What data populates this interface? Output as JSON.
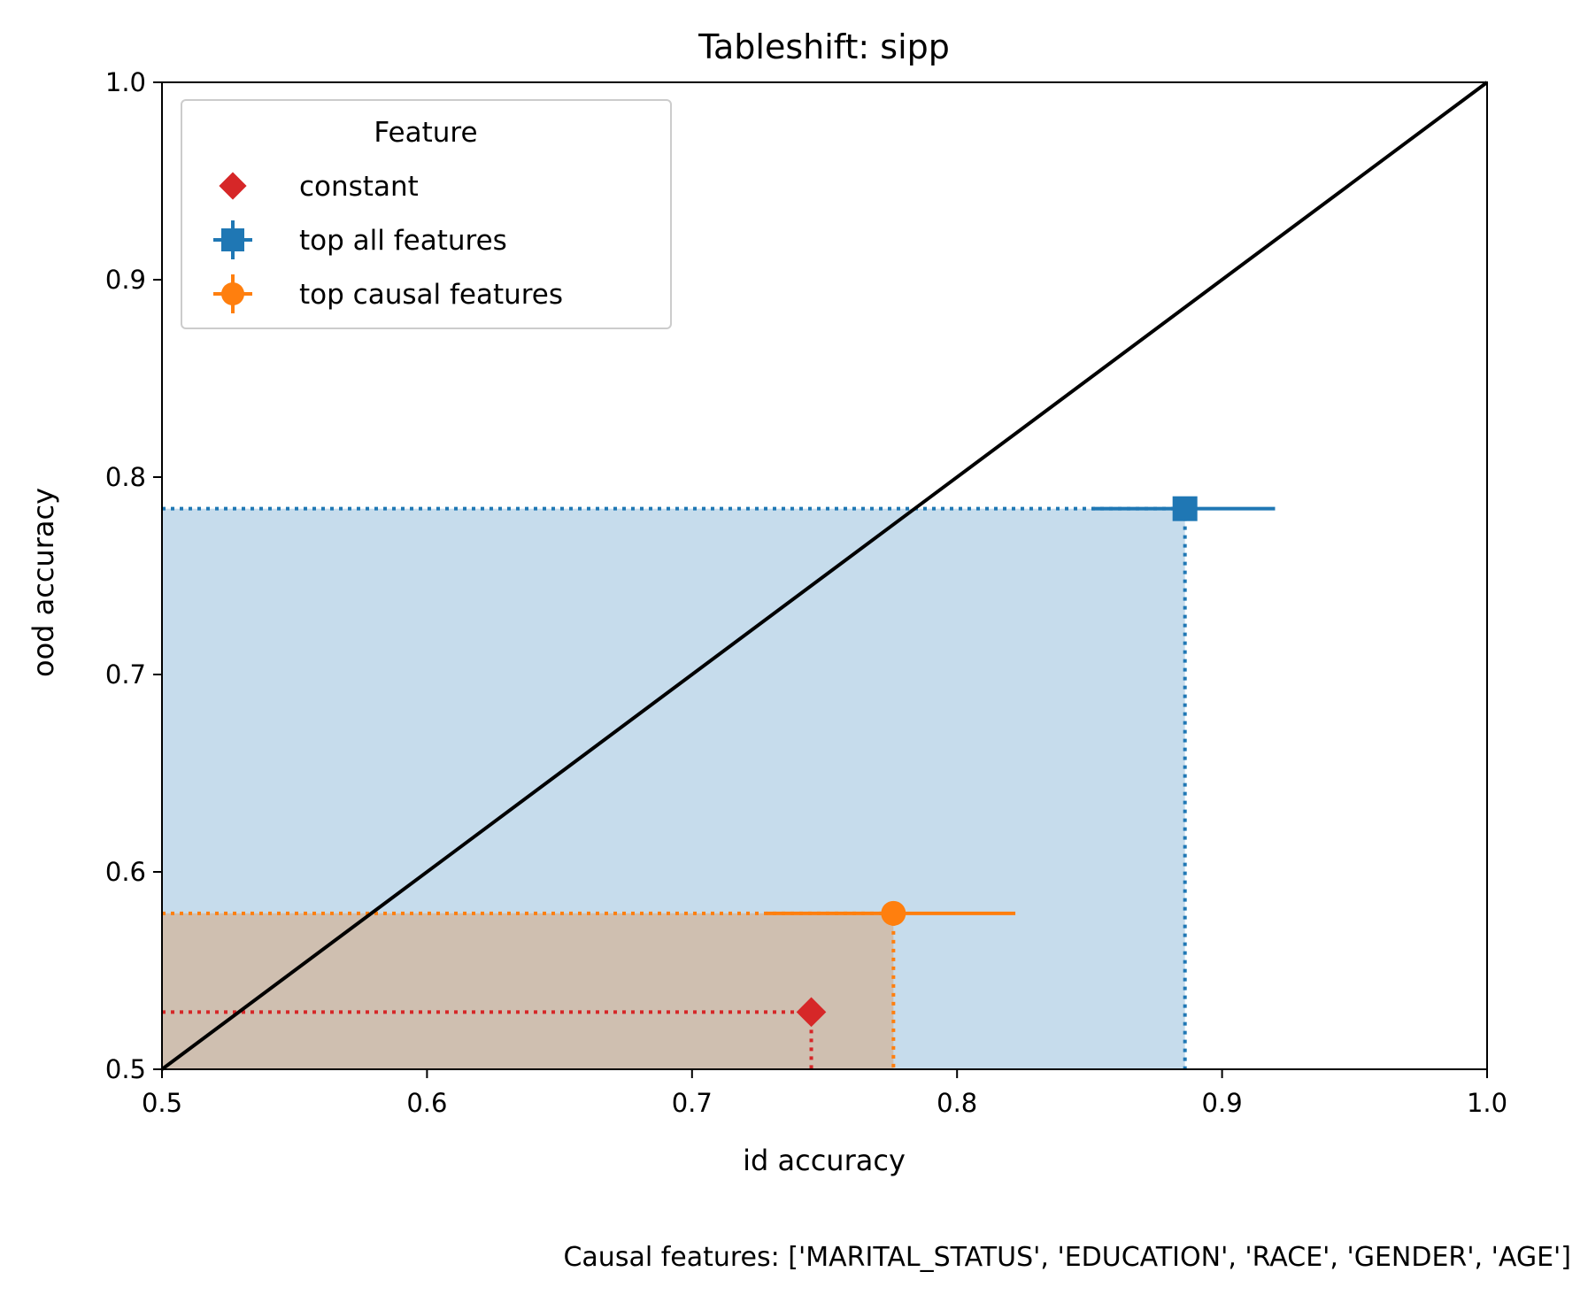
{
  "chart_data": {
    "type": "scatter",
    "title": "Tableshift: sipp",
    "xlabel": "id accuracy",
    "ylabel": "ood accuracy",
    "xlim": [
      0.5,
      1.0
    ],
    "ylim": [
      0.5,
      1.0
    ],
    "x_ticks": [
      "0.5",
      "0.6",
      "0.7",
      "0.8",
      "0.9",
      "1.0"
    ],
    "y_ticks": [
      "0.5",
      "0.6",
      "0.7",
      "0.8",
      "0.9",
      "1.0"
    ],
    "diagonal": true,
    "grid": false,
    "legend": {
      "title": "Feature",
      "position": "top-left"
    },
    "series": [
      {
        "name": "constant",
        "marker": "diamond",
        "color": "#d62728",
        "x": 0.745,
        "y": 0.529,
        "x_err": null,
        "shade": null
      },
      {
        "name": "top all features",
        "marker": "square",
        "color": "#1f77b4",
        "x": 0.886,
        "y": 0.784,
        "x_err": [
          0.851,
          0.92
        ],
        "shade": "#bcd6e9"
      },
      {
        "name": "top causal features",
        "marker": "circle",
        "color": "#ff7f0e",
        "x": 0.776,
        "y": 0.579,
        "x_err": [
          0.728,
          0.822
        ],
        "shade": "#d0baa6"
      }
    ],
    "annotation": "Causal features: ['MARITAL_STATUS', 'EDUCATION', 'RACE', 'GENDER', 'AGE']"
  }
}
